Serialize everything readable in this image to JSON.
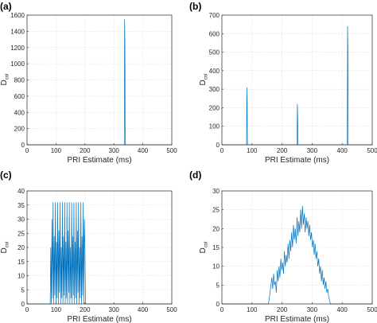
{
  "figure": {
    "accent_color": "#0072BD",
    "grid": true
  },
  "chart_data": [
    {
      "type": "line",
      "panel_label": "(a)",
      "title": "",
      "xlabel": "PRI Estimate (ms)",
      "ylabel_main": "D",
      "ylabel_sub": "col",
      "xlim": [
        0,
        500
      ],
      "ylim": [
        0,
        1600
      ],
      "xticks": [
        0,
        100,
        200,
        300,
        400,
        500
      ],
      "xtick_labels": [
        "0",
        "100",
        "200",
        "300",
        "400",
        "500"
      ],
      "yticks": [
        0,
        200,
        400,
        600,
        800,
        1000,
        1200,
        1400,
        1600
      ],
      "ytick_labels": [
        "0",
        "200",
        "400",
        "600",
        "800",
        "1000",
        "1200",
        "1400",
        "1600"
      ],
      "grid": true,
      "series": [
        {
          "x": [
            0,
            100,
            200,
            300,
            336,
            337,
            338,
            339,
            340,
            400,
            500
          ],
          "y": [
            0,
            0,
            0,
            0,
            0,
            1550,
            1300,
            0,
            0,
            0,
            0
          ]
        }
      ]
    },
    {
      "type": "line",
      "panel_label": "(b)",
      "title": "",
      "xlabel": "PRI Estimate (ms)",
      "ylabel_main": "D",
      "ylabel_sub": "col",
      "xlim": [
        0,
        500
      ],
      "ylim": [
        0,
        700
      ],
      "xticks": [
        0,
        100,
        200,
        300,
        400,
        500
      ],
      "xtick_labels": [
        "0",
        "100",
        "200",
        "300",
        "400",
        "500"
      ],
      "yticks": [
        0,
        100,
        200,
        300,
        400,
        500,
        600,
        700
      ],
      "ytick_labels": [
        "0",
        "100",
        "200",
        "300",
        "400",
        "500",
        "600",
        "700"
      ],
      "grid": true,
      "series": [
        {
          "x": [
            0,
            82,
            83,
            84,
            85,
            86,
            100,
            250,
            251,
            252,
            253,
            254,
            300,
            400,
            417,
            418,
            419,
            420,
            421,
            500
          ],
          "y": [
            0,
            0,
            310,
            200,
            0,
            0,
            0,
            0,
            220,
            150,
            0,
            0,
            0,
            0,
            0,
            640,
            520,
            0,
            0,
            0
          ]
        }
      ]
    },
    {
      "type": "line",
      "panel_label": "(c)",
      "title": "",
      "xlabel": "PRI Estimate (ms)",
      "ylabel_main": "D",
      "ylabel_sub": "col",
      "xlim": [
        0,
        500
      ],
      "ylim": [
        0,
        40
      ],
      "xticks": [
        0,
        100,
        200,
        300,
        400,
        500
      ],
      "xtick_labels": [
        "0",
        "100",
        "200",
        "300",
        "400",
        "500"
      ],
      "yticks": [
        0,
        5,
        10,
        15,
        20,
        25,
        30,
        35,
        40
      ],
      "ytick_labels": [
        "0",
        "5",
        "10",
        "15",
        "20",
        "25",
        "30",
        "35",
        "40"
      ],
      "grid": true,
      "series": [
        {
          "x": [
            0,
            80,
            82,
            84,
            86,
            88,
            90,
            92,
            94,
            96,
            98,
            100,
            102,
            104,
            106,
            108,
            110,
            112,
            114,
            116,
            118,
            120,
            122,
            124,
            126,
            128,
            130,
            132,
            134,
            136,
            138,
            140,
            142,
            144,
            146,
            148,
            150,
            152,
            154,
            156,
            158,
            160,
            162,
            164,
            166,
            168,
            170,
            172,
            174,
            176,
            178,
            180,
            182,
            184,
            186,
            188,
            190,
            192,
            194,
            196,
            198,
            200,
            202,
            500
          ],
          "y": [
            0,
            0,
            20,
            0,
            30,
            2,
            36,
            0,
            24,
            3,
            36,
            0,
            22,
            2,
            36,
            0,
            26,
            4,
            36,
            0,
            20,
            2,
            36,
            0,
            24,
            3,
            36,
            0,
            22,
            2,
            36,
            0,
            26,
            4,
            36,
            0,
            20,
            2,
            36,
            0,
            24,
            3,
            36,
            0,
            22,
            2,
            36,
            0,
            26,
            4,
            36,
            0,
            20,
            2,
            36,
            0,
            24,
            3,
            36,
            0,
            30,
            20,
            0,
            0
          ]
        }
      ]
    },
    {
      "type": "line",
      "panel_label": "(d)",
      "title": "",
      "xlabel": "PRI Estimate (ms)",
      "ylabel_main": "D",
      "ylabel_sub": "col",
      "xlim": [
        0,
        500
      ],
      "ylim": [
        0,
        30
      ],
      "xticks": [
        0,
        100,
        200,
        300,
        400,
        500
      ],
      "xtick_labels": [
        "0",
        "100",
        "200",
        "300",
        "400",
        "500"
      ],
      "yticks": [
        0,
        5,
        10,
        15,
        20,
        25,
        30
      ],
      "ytick_labels": [
        "0",
        "5",
        "10",
        "15",
        "20",
        "25",
        "30"
      ],
      "grid": true,
      "series": [
        {
          "x": [
            0,
            155,
            160,
            163,
            166,
            169,
            172,
            175,
            178,
            181,
            184,
            187,
            190,
            193,
            196,
            199,
            202,
            205,
            208,
            211,
            214,
            217,
            220,
            223,
            226,
            229,
            232,
            235,
            238,
            241,
            244,
            247,
            250,
            253,
            256,
            259,
            262,
            265,
            268,
            271,
            274,
            277,
            280,
            283,
            286,
            289,
            292,
            295,
            298,
            301,
            304,
            307,
            310,
            313,
            316,
            319,
            322,
            325,
            328,
            331,
            334,
            337,
            340,
            343,
            346,
            349,
            352,
            355,
            358,
            361,
            500
          ],
          "y": [
            0,
            0,
            3,
            5,
            7,
            4,
            8,
            5,
            6,
            3,
            9,
            6,
            10,
            7,
            12,
            9,
            11,
            8,
            14,
            10,
            13,
            11,
            16,
            12,
            17,
            14,
            19,
            15,
            21,
            17,
            20,
            16,
            23,
            18,
            22,
            19,
            25,
            20,
            26,
            21,
            24,
            19,
            23,
            20,
            22,
            18,
            21,
            17,
            19,
            15,
            17,
            13,
            16,
            12,
            14,
            10,
            12,
            8,
            10,
            6,
            9,
            5,
            7,
            4,
            6,
            3,
            4,
            2,
            1,
            0,
            0
          ]
        }
      ]
    }
  ]
}
